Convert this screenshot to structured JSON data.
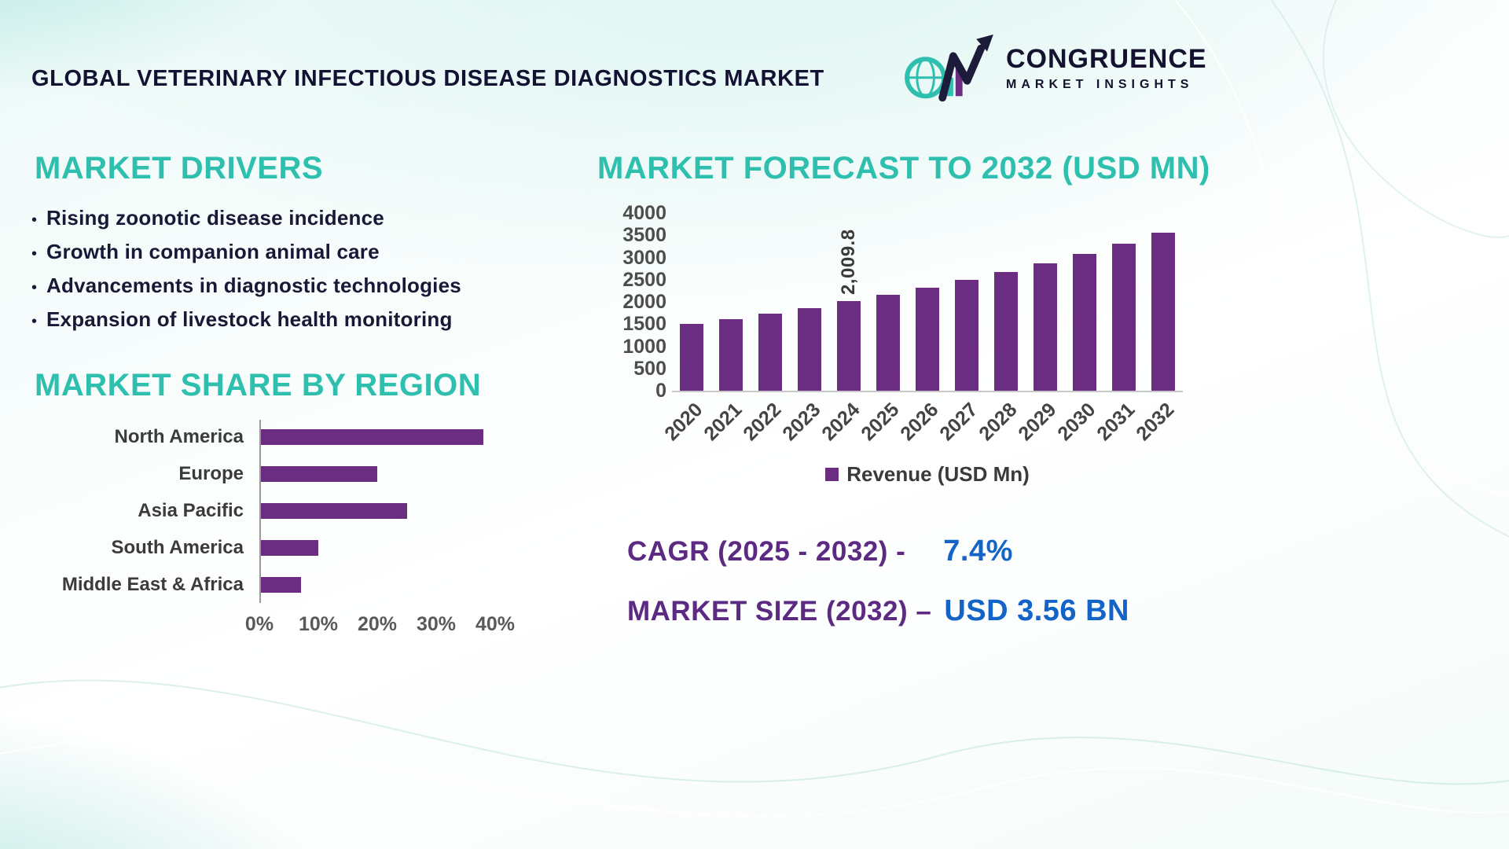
{
  "page_title": "GLOBAL VETERINARY INFECTIOUS DISEASE DIAGNOSTICS MARKET",
  "logo": {
    "brand": "CONGRUENCE",
    "tagline": "MARKET INSIGHTS"
  },
  "drivers": {
    "heading": "MARKET DRIVERS",
    "items": [
      "Rising zoonotic disease incidence",
      "Growth in companion animal care",
      "Advancements in diagnostic technologies",
      "Expansion of livestock health monitoring"
    ]
  },
  "stats": {
    "cagr_label": "CAGR (2025 - 2032) -",
    "cagr_value": "7.4%",
    "market_size_label": "MARKET SIZE (2032) –",
    "market_size_value": "USD 3.56 BN"
  },
  "colors": {
    "teal": "#2FBFAE",
    "purple": "#6B2D80",
    "blue": "#1463C6",
    "navy": "#15132F"
  },
  "chart_data": [
    {
      "type": "bar",
      "orientation": "horizontal",
      "title": "MARKET SHARE BY REGION",
      "categories": [
        "North America",
        "Europe",
        "Asia Pacific",
        "South America",
        "Middle East & Africa"
      ],
      "values": [
        38,
        20,
        25,
        10,
        7
      ],
      "unit": "%",
      "x_ticks": [
        "0%",
        "10%",
        "20%",
        "30%",
        "40%"
      ],
      "xlim": [
        0,
        40
      ],
      "bar_color": "#6B2D80",
      "grid": false
    },
    {
      "type": "bar",
      "orientation": "vertical",
      "title": "MARKET FORECAST TO 2032 (USD MN)",
      "categories": [
        "2020",
        "2021",
        "2022",
        "2023",
        "2024",
        "2025",
        "2026",
        "2027",
        "2028",
        "2029",
        "2030",
        "2031",
        "2032"
      ],
      "values": [
        1500,
        1610,
        1730,
        1865,
        2009.8,
        2155,
        2315,
        2490,
        2670,
        2870,
        3080,
        3310,
        3557
      ],
      "annotated_bar": {
        "category": "2024",
        "label": "2,009.8"
      },
      "ylim": [
        0,
        4000
      ],
      "ytick_step": 500,
      "legend": "Revenue (USD Mn)",
      "legend_position": "bottom",
      "bar_color": "#6B2D80",
      "grid": false
    }
  ]
}
